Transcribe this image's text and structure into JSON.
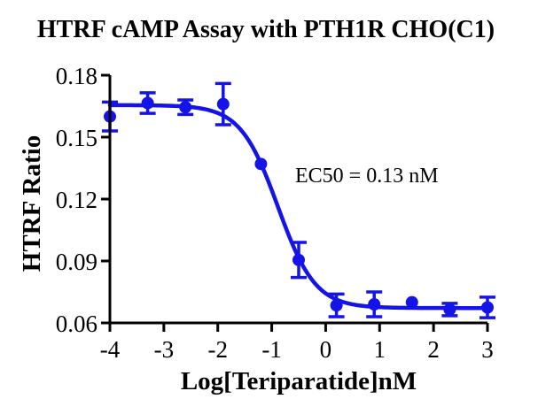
{
  "title": "HTRF cAMP Assay with PTH1R CHO(C1)",
  "annotation_text": "EC50 = 0.13 nM",
  "colors": {
    "series_blue": "#1414E8",
    "axis_black": "#000000",
    "text_black": "#000000",
    "background": "#FFFFFF"
  },
  "chart_data": {
    "type": "scatter",
    "subtype": "dose-response-4PL-fit-with-error-bars",
    "title": "HTRF cAMP Assay with PTH1R CHO(C1)",
    "xlabel": "Log[Teriparatide]nM",
    "ylabel": "HTRF Ratio",
    "xlim": [
      -4,
      3
    ],
    "ylim": [
      0.06,
      0.18
    ],
    "x_ticks": [
      -4,
      -3,
      -2,
      -1,
      0,
      1,
      2,
      3
    ],
    "y_ticks": [
      0.06,
      0.09,
      0.12,
      0.15,
      0.18
    ],
    "grid": false,
    "legend": null,
    "annotation": "EC50 = 0.13 nM",
    "ec50_nM": 0.13,
    "x": [
      -4.0,
      -3.3,
      -2.6,
      -1.9,
      -1.2,
      -0.5,
      0.2,
      0.9,
      1.6,
      2.3,
      3.0
    ],
    "y": [
      0.16,
      0.1665,
      0.1645,
      0.166,
      0.137,
      0.0905,
      0.0685,
      0.069,
      0.07,
      0.0665,
      0.0675
    ],
    "y_err": [
      0.007,
      0.005,
      0.0035,
      0.01,
      0.0,
      0.0085,
      0.0055,
      0.006,
      0.0,
      0.003,
      0.005
    ],
    "fit": {
      "model": "four-parameter-logistic-descending",
      "top": 0.1655,
      "bottom": 0.0672,
      "log_ec50": -0.886,
      "hill": 1.25,
      "x_start": -4.0,
      "x_end": 3.0
    }
  }
}
